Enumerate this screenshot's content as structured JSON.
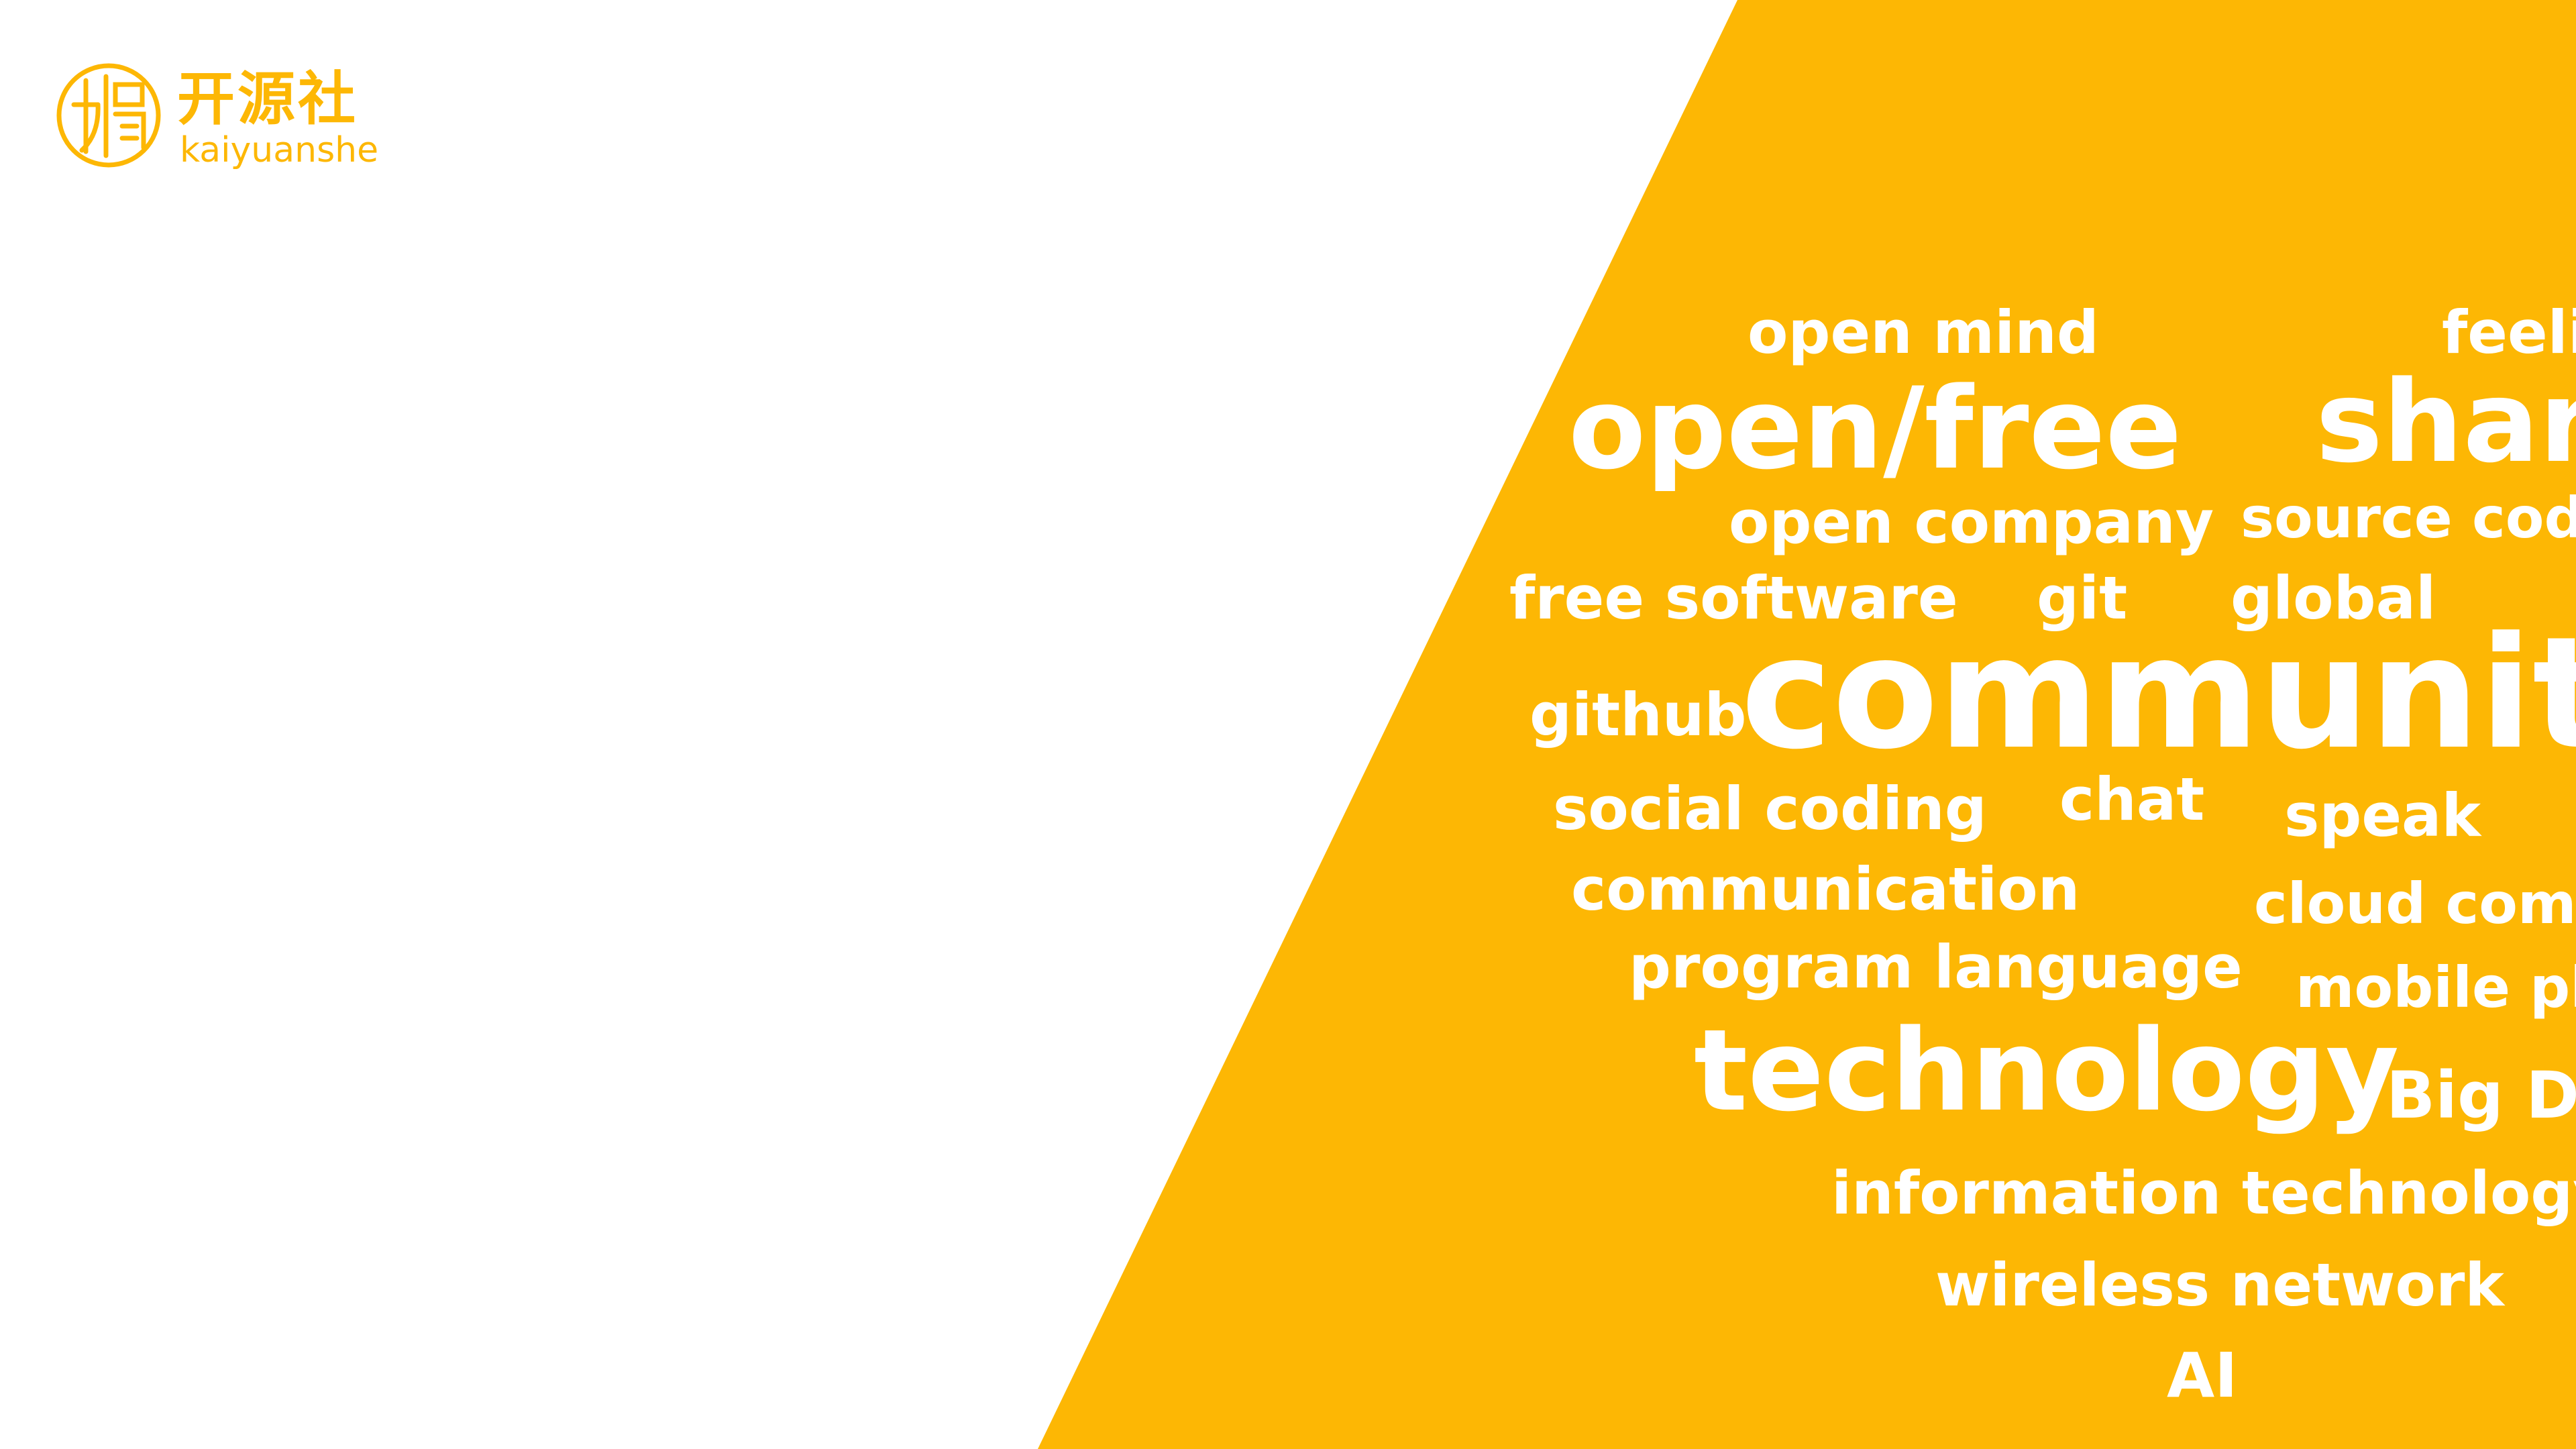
{
  "slide": {
    "background_color": "#FFFFFF",
    "panel_color": "#FDB704",
    "word_color": "#FFFFFF"
  },
  "logo": {
    "icon": "kaiyuanshe-logo-icon",
    "name_cn": "开源社",
    "name_en": "kaiyuanshe",
    "color": "#FDB704"
  },
  "word_cloud": {
    "words": [
      "open mind",
      "feeli",
      "open/free",
      "shar",
      "open company",
      "source cod",
      "free software",
      "git",
      "global",
      "github",
      "communit",
      "social coding",
      "chat",
      "speak",
      "communication",
      "cloud com",
      "program language",
      "mobile pl",
      "technology",
      "Big Da",
      "information technology",
      "wireless network",
      "AI"
    ]
  }
}
